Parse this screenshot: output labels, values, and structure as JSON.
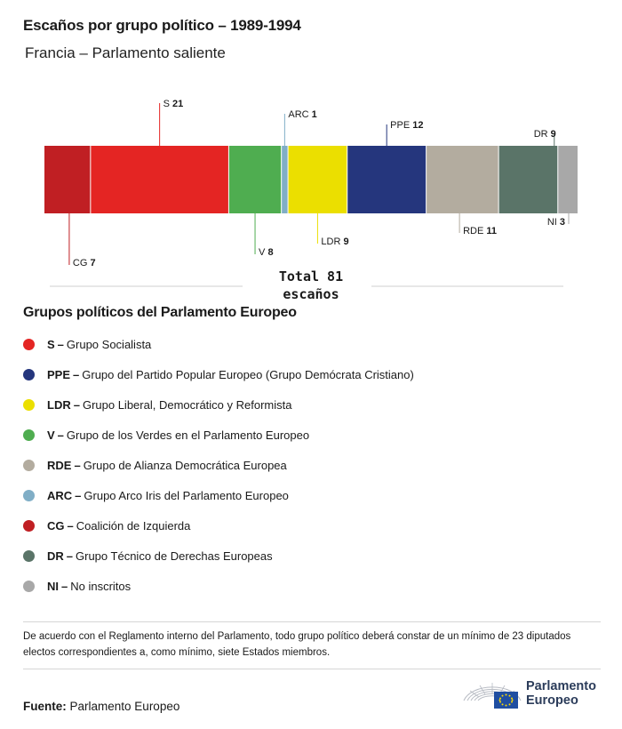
{
  "title": "Escaños por grupo político – 1989-1994",
  "subtitle": "Francia – Parlamento saliente",
  "chart_data": {
    "type": "stacked-bar",
    "total_label": "Total 81",
    "total_unit": "escaños",
    "total": 81,
    "segments": [
      {
        "abbr": "CG",
        "value": 7,
        "color": "#c01f23",
        "label_side": "below"
      },
      {
        "abbr": "S",
        "value": 21,
        "color": "#e42523",
        "label_side": "above"
      },
      {
        "abbr": "V",
        "value": 8,
        "color": "#4fad50",
        "label_side": "below"
      },
      {
        "abbr": "ARC",
        "value": 1,
        "color": "#80aec6",
        "label_side": "above"
      },
      {
        "abbr": "LDR",
        "value": 9,
        "color": "#ebdf00",
        "label_side": "below"
      },
      {
        "abbr": "PPE",
        "value": 12,
        "color": "#25367d",
        "label_side": "above"
      },
      {
        "abbr": "RDE",
        "value": 11,
        "color": "#b3ac9f",
        "label_side": "below"
      },
      {
        "abbr": "DR",
        "value": 9,
        "color": "#5a7468",
        "label_side": "above"
      },
      {
        "abbr": "NI",
        "value": 3,
        "color": "#a8a8a8",
        "label_side": "below"
      }
    ]
  },
  "legend": {
    "title": "Grupos políticos del Parlamento Europeo",
    "items": [
      {
        "abbr": "S",
        "name": "Grupo Socialista",
        "color": "#e42523"
      },
      {
        "abbr": "PPE",
        "name": "Grupo del Partido Popular Europeo (Grupo Demócrata Cristiano)",
        "color": "#25367d"
      },
      {
        "abbr": "LDR",
        "name": "Grupo Liberal, Democrático y Reformista",
        "color": "#ebdf00"
      },
      {
        "abbr": "V",
        "name": "Grupo de los Verdes en el Parlamento Europeo",
        "color": "#4fad50"
      },
      {
        "abbr": "RDE",
        "name": "Grupo de Alianza Democrática Europea",
        "color": "#b3ac9f"
      },
      {
        "abbr": "ARC",
        "name": "Grupo Arco Iris del Parlamento Europeo",
        "color": "#80aec6"
      },
      {
        "abbr": "CG",
        "name": "Coalición de Izquierda",
        "color": "#c01f23"
      },
      {
        "abbr": "DR",
        "name": "Grupo Técnico de Derechas Europeas",
        "color": "#5a7468"
      },
      {
        "abbr": "NI",
        "name": "No inscritos",
        "color": "#a8a8a8"
      }
    ]
  },
  "note": "De acuerdo con el Reglamento interno del Parlamento, todo grupo político deberá constar de un mínimo de 23 diputados electos correspondientes a, como mínimo, siete Estados miembros.",
  "source": {
    "label": "Fuente:",
    "value": "Parlamento Europeo"
  },
  "logo": {
    "line1": "Parlamento",
    "line2": "Europeo"
  }
}
